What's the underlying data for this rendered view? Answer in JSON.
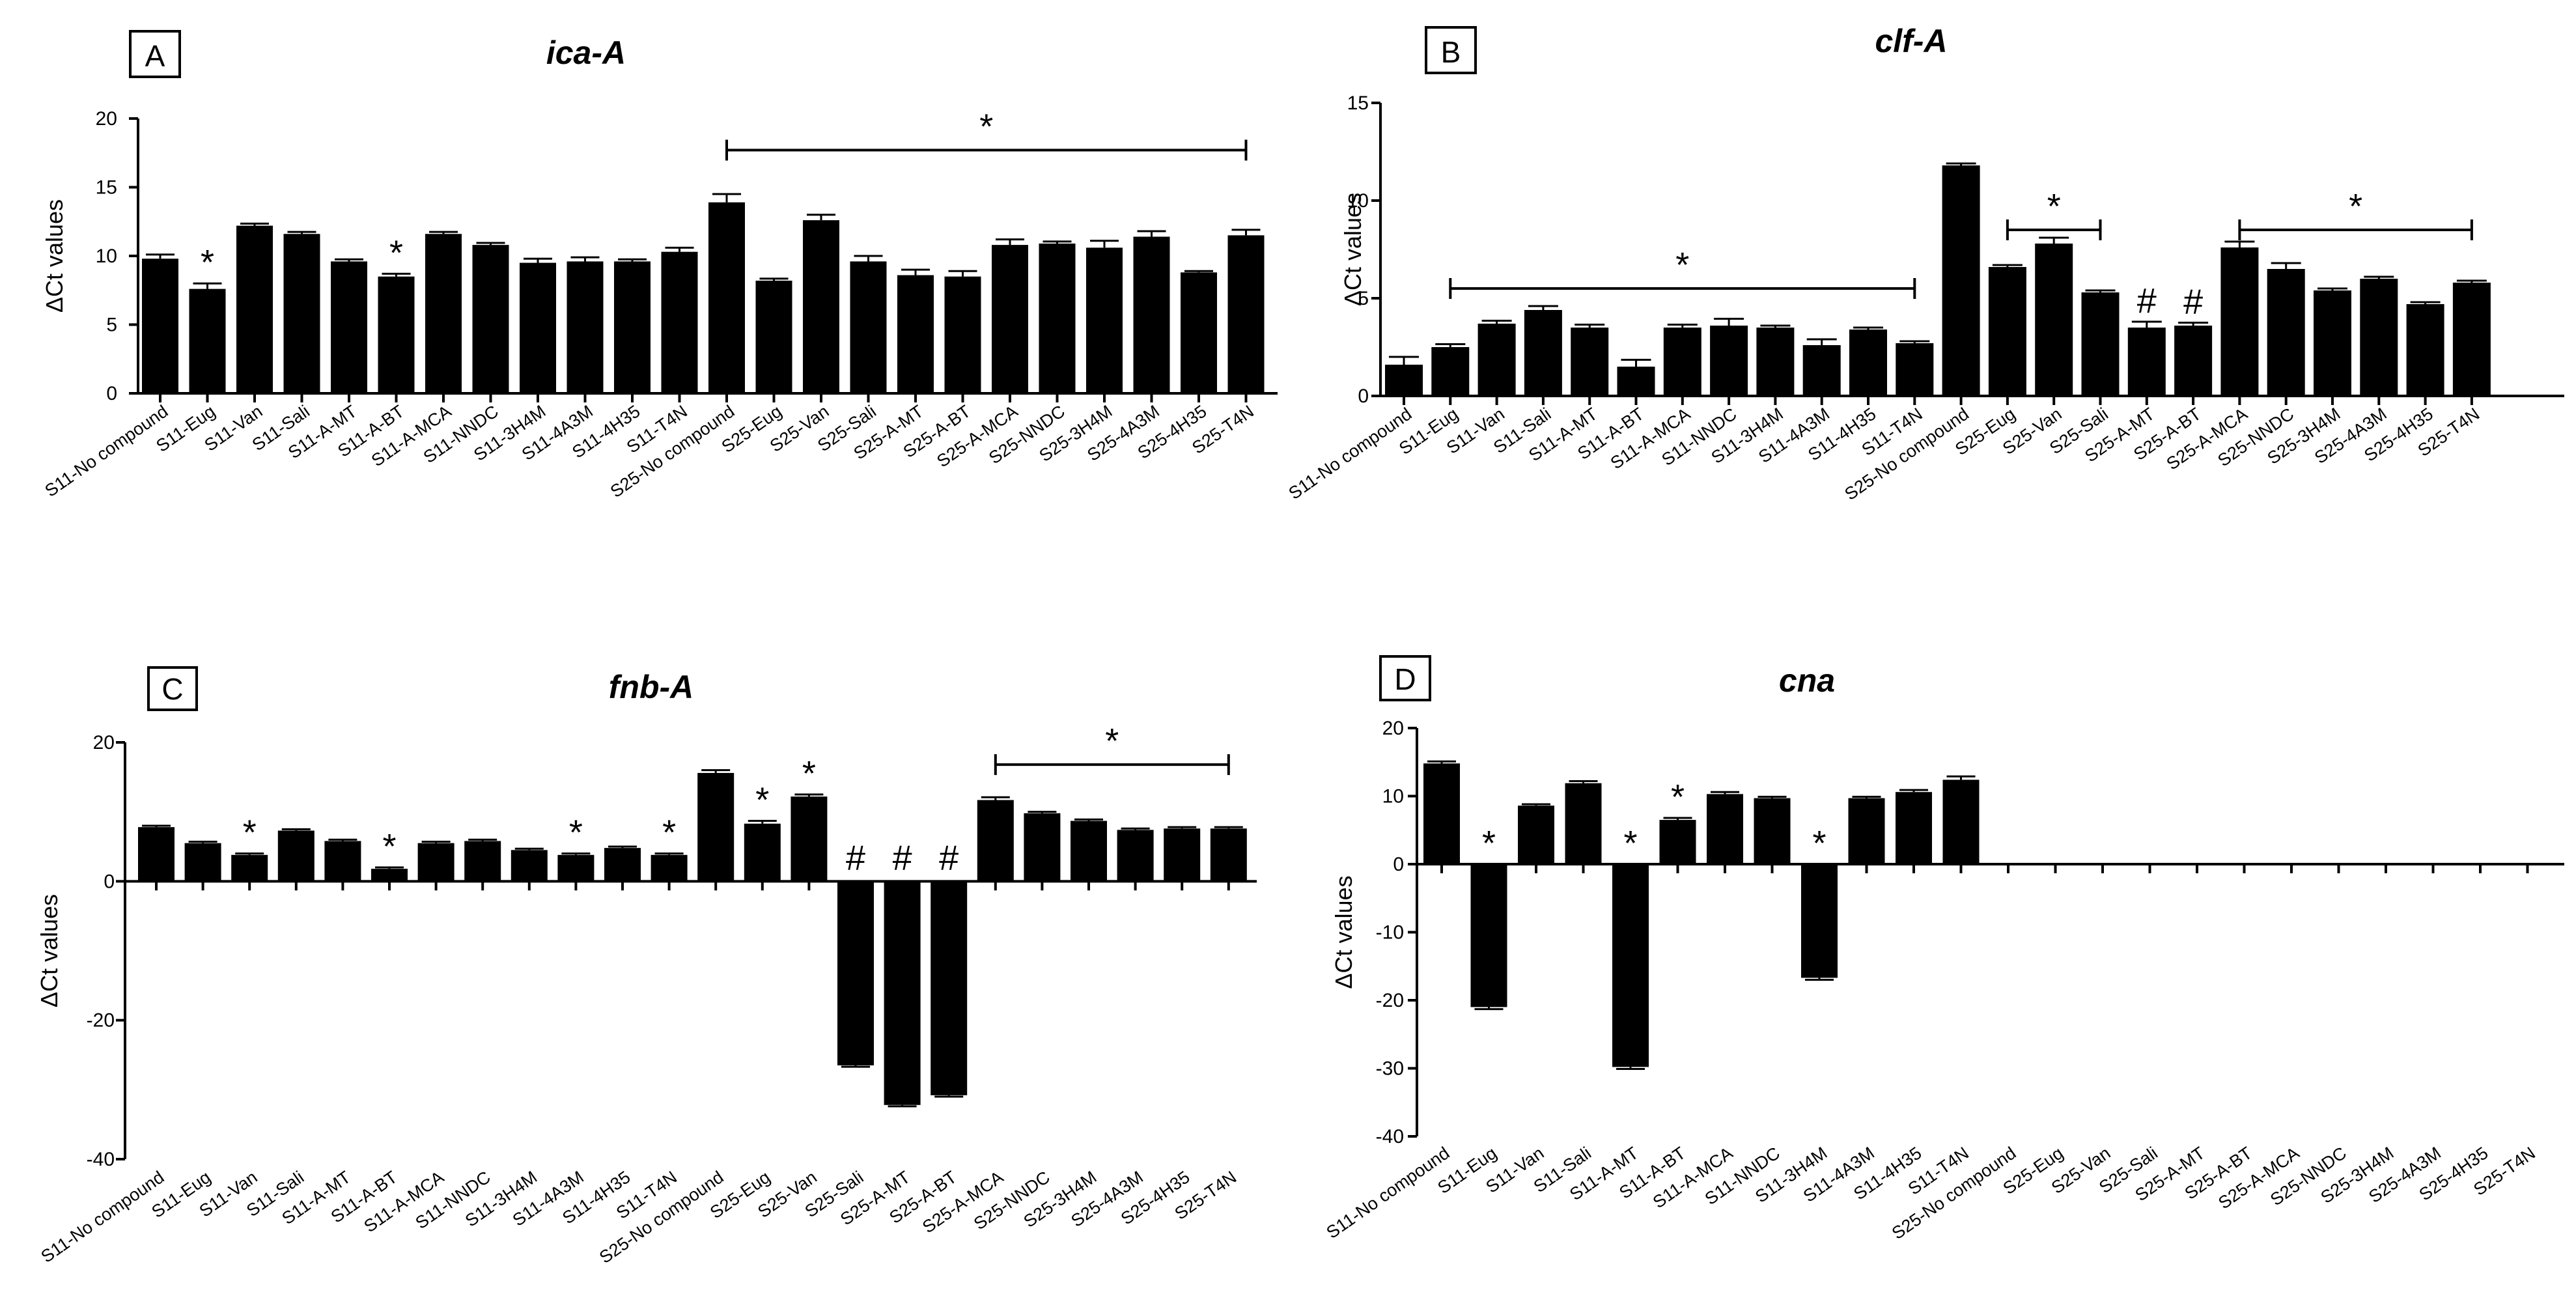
{
  "chart_data": [
    {
      "type": "bar",
      "panel": "A",
      "title": "ica-A",
      "ylabel": "ΔCt values",
      "xlabel": "",
      "ylim": [
        0,
        20
      ],
      "yticks": [
        0,
        5,
        10,
        15,
        20
      ],
      "categories": [
        "S11-No compound",
        "S11-Eug",
        "S11-Van",
        "S11-Sali",
        "S11-A-MT",
        "S11-A-BT",
        "S11-A-MCA",
        "S11-NNDC",
        "S11-3H4M",
        "S11-4A3M",
        "S11-4H35",
        "S11-T4N",
        "S25-No compound",
        "S25-Eug",
        "S25-Van",
        "S25-Sali",
        "S25-A-MT",
        "S25-A-BT",
        "S25-A-MCA",
        "S25-NNDC",
        "S25-3H4M",
        "S25-4A3M",
        "S25-4H35",
        "S25-T4N"
      ],
      "values": [
        9.8,
        7.6,
        12.2,
        11.6,
        9.6,
        8.5,
        11.6,
        10.8,
        9.5,
        9.6,
        9.6,
        10.3,
        13.9,
        8.2,
        12.6,
        9.6,
        8.6,
        8.5,
        10.8,
        10.9,
        10.6,
        11.4,
        8.8,
        11.5
      ],
      "errors": [
        0.3,
        0.4,
        0.15,
        0.15,
        0.15,
        0.2,
        0.15,
        0.15,
        0.3,
        0.3,
        0.15,
        0.3,
        0.6,
        0.15,
        0.4,
        0.4,
        0.4,
        0.4,
        0.4,
        0.15,
        0.5,
        0.4,
        0.1,
        0.4
      ],
      "marks": [
        {
          "index": 1,
          "symbol": "*"
        },
        {
          "index": 5,
          "symbol": "*"
        }
      ],
      "brackets": [
        {
          "from": 12,
          "to": 23,
          "symbol": "*",
          "level": 17.7
        }
      ]
    },
    {
      "type": "bar",
      "panel": "B",
      "title": "clf-A",
      "ylabel": "ΔCt values",
      "xlabel": "",
      "ylim": [
        0,
        15
      ],
      "yticks": [
        0,
        5,
        10,
        15
      ],
      "categories": [
        "S11-No compound",
        "S11-Eug",
        "S11-Van",
        "S11-Sali",
        "S11-A-MT",
        "S11-A-BT",
        "S11-A-MCA",
        "S11-NNDC",
        "S11-3H4M",
        "S11-4A3M",
        "S11-4H35",
        "S11-T4N",
        "S25-No compound",
        "S25-Eug",
        "S25-Van",
        "S25-Sali",
        "S25-A-MT",
        "S25-A-BT",
        "S25-A-MCA",
        "S25-NNDC",
        "S25-3H4M",
        "S25-4A3M",
        "S25-4H35",
        "S25-T4N"
      ],
      "values": [
        1.6,
        2.5,
        3.7,
        4.4,
        3.5,
        1.5,
        3.5,
        3.6,
        3.5,
        2.6,
        3.4,
        2.7,
        11.8,
        6.6,
        7.8,
        5.3,
        3.5,
        3.6,
        7.6,
        6.5,
        5.4,
        6.0,
        4.7,
        5.8
      ],
      "errors": [
        0.4,
        0.15,
        0.15,
        0.2,
        0.15,
        0.35,
        0.15,
        0.35,
        0.1,
        0.3,
        0.1,
        0.1,
        0.1,
        0.1,
        0.3,
        0.1,
        0.3,
        0.15,
        0.3,
        0.3,
        0.1,
        0.1,
        0.1,
        0.1
      ],
      "marks": [
        {
          "index": 16,
          "symbol": "#"
        },
        {
          "index": 17,
          "symbol": "#"
        }
      ],
      "brackets": [
        {
          "from": 1,
          "to": 11,
          "symbol": "*",
          "level": 5.5
        },
        {
          "from": 13,
          "to": 15,
          "symbol": "*",
          "level": 8.5
        },
        {
          "from": 18,
          "to": 23,
          "symbol": "*",
          "level": 8.5
        }
      ]
    },
    {
      "type": "bar",
      "panel": "C",
      "title": "fnb-A",
      "ylabel": "ΔCt values",
      "xlabel": "",
      "ylim": [
        -40,
        20
      ],
      "yticks": [
        -40,
        -20,
        0,
        20
      ],
      "categories": [
        "S11-No compound",
        "S11-Eug",
        "S11-Van",
        "S11-Sali",
        "S11-A-MT",
        "S11-A-BT",
        "S11-A-MCA",
        "S11-NNDC",
        "S11-3H4M",
        "S11-4A3M",
        "S11-4H35",
        "S11-T4N",
        "S25-No compound",
        "S25-Eug",
        "S25-Van",
        "S25-Sali",
        "S25-A-MT",
        "S25-A-BT",
        "S25-A-MCA",
        "S25-NNDC",
        "S25-3H4M",
        "S25-4A3M",
        "S25-4H35",
        "S25-T4N"
      ],
      "values": [
        7.8,
        5.5,
        3.8,
        7.3,
        5.8,
        1.8,
        5.5,
        5.8,
        4.5,
        3.8,
        4.8,
        3.8,
        15.6,
        8.3,
        12.2,
        -26.5,
        -32.2,
        -30.8,
        11.7,
        9.8,
        8.7,
        7.4,
        7.6,
        7.6
      ],
      "errors": [
        0.2,
        0.2,
        0.2,
        0.2,
        0.2,
        0.2,
        0.2,
        0.2,
        0.2,
        0.2,
        0.2,
        0.2,
        0.4,
        0.4,
        0.3,
        0.2,
        0.2,
        0.2,
        0.4,
        0.2,
        0.2,
        0.2,
        0.2,
        0.2
      ],
      "marks": [
        {
          "index": 2,
          "symbol": "*"
        },
        {
          "index": 5,
          "symbol": "*"
        },
        {
          "index": 9,
          "symbol": "*"
        },
        {
          "index": 11,
          "symbol": "*"
        },
        {
          "index": 13,
          "symbol": "*"
        },
        {
          "index": 14,
          "symbol": "*"
        },
        {
          "index": 15,
          "symbol": "#"
        },
        {
          "index": 16,
          "symbol": "#"
        },
        {
          "index": 17,
          "symbol": "#"
        }
      ],
      "brackets": [
        {
          "from": 18,
          "to": 23,
          "symbol": "*",
          "level": 16.8
        }
      ]
    },
    {
      "type": "bar",
      "panel": "D",
      "title": "cna",
      "ylabel": "ΔCt values",
      "xlabel": "",
      "ylim": [
        -40,
        20
      ],
      "yticks": [
        -40,
        -30,
        -20,
        -10,
        0,
        10,
        20
      ],
      "categories": [
        "S11-No compound",
        "S11-Eug",
        "S11-Van",
        "S11-Sali",
        "S11-A-MT",
        "S11-A-BT",
        "S11-A-MCA",
        "S11-NNDC",
        "S11-3H4M",
        "S11-4A3M",
        "S11-4H35",
        "S11-T4N",
        "S25-No compound",
        "S25-Eug",
        "S25-Van",
        "S25-Sali",
        "S25-A-MT",
        "S25-A-BT",
        "S25-A-MCA",
        "S25-NNDC",
        "S25-3H4M",
        "S25-4A3M",
        "S25-4H35",
        "S25-T4N"
      ],
      "values": [
        14.8,
        -21.0,
        8.6,
        11.9,
        -29.8,
        6.5,
        10.3,
        9.7,
        -16.7,
        9.7,
        10.6,
        12.4,
        null,
        null,
        null,
        null,
        null,
        null,
        null,
        null,
        null,
        null,
        null,
        null
      ],
      "errors": [
        0.3,
        0.3,
        0.2,
        0.3,
        0.3,
        0.3,
        0.3,
        0.2,
        0.3,
        0.2,
        0.3,
        0.5,
        null,
        null,
        null,
        null,
        null,
        null,
        null,
        null,
        null,
        null,
        null,
        null
      ],
      "marks": [
        {
          "index": 1,
          "symbol": "*"
        },
        {
          "index": 4,
          "symbol": "*"
        },
        {
          "index": 5,
          "symbol": "*"
        },
        {
          "index": 8,
          "symbol": "*"
        }
      ],
      "brackets": []
    }
  ]
}
